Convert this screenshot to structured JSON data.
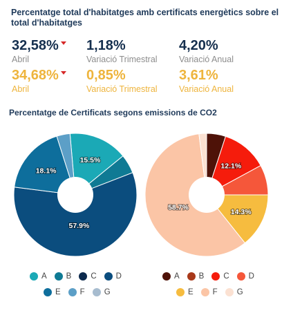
{
  "header": {
    "title": "Percentatge total d'habitatges amb certificats energètics sobre el total d'habitatges"
  },
  "kpis": {
    "row1": [
      {
        "value": "32,58%",
        "label": "Abril",
        "trend_icon": "down-triangle-icon"
      },
      {
        "value": "1,18%",
        "label": "Variació Trimestral"
      },
      {
        "value": "4,20%",
        "label": "Variació Anual"
      }
    ],
    "row2": [
      {
        "value": "34,68%",
        "label": "Abril",
        "trend_icon": "down-triangle-icon"
      },
      {
        "value": "0,85%",
        "label": "Variació Trimestral"
      },
      {
        "value": "3,61%",
        "label": "Variació Anual"
      }
    ],
    "colors": {
      "row1": "#152f4e",
      "row2": "#eeb43c",
      "trend": "#d62828"
    }
  },
  "section": {
    "title": "Percentatge de Certificats segons emissions de CO2"
  },
  "chart_data": [
    {
      "type": "pie",
      "variant": "donut",
      "title": "",
      "categories": [
        "A",
        "B",
        "C",
        "D",
        "E",
        "F",
        "G"
      ],
      "values": [
        15.5,
        5.0,
        0.0,
        57.9,
        18.1,
        3.5,
        0.0
      ],
      "data_labels": [
        "15.5%",
        "",
        "",
        "57.9%",
        "18.1%",
        "",
        ""
      ],
      "colors": [
        "#1ba9b6",
        "#0f7a94",
        "#0c2a4d",
        "#0b4d7e",
        "#0e6e9c",
        "#5c9fc7",
        "#a7bccf"
      ],
      "legend": "bottom"
    },
    {
      "type": "pie",
      "variant": "donut",
      "title": "",
      "categories": [
        "A",
        "B",
        "C",
        "D",
        "E",
        "F",
        "G"
      ],
      "values": [
        5.0,
        0.0,
        12.1,
        7.9,
        14.3,
        58.7,
        2.0
      ],
      "data_labels": [
        "",
        "",
        "12.1%",
        "",
        "14.3%",
        "58.7%",
        ""
      ],
      "colors": [
        "#4e1208",
        "#a8391a",
        "#f51c0c",
        "#f5573a",
        "#f6bc3f",
        "#fbc5a6",
        "#fbe1d2"
      ],
      "legend": "bottom"
    }
  ]
}
